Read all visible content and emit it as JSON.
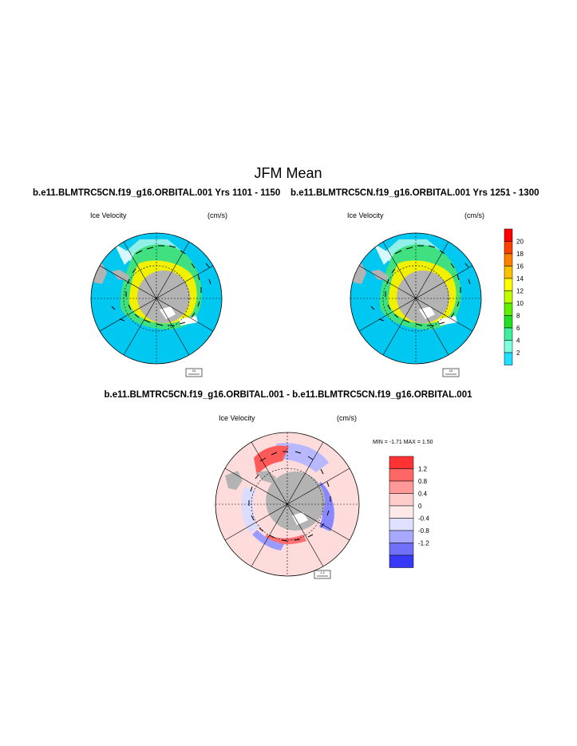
{
  "page": {
    "title": "JFM Mean",
    "case_left": "b.e11.BLMTRC5CN.f19_g16.ORBITAL.001  Yrs 1101 - 1150",
    "case_right": "b.e11.BLMTRC5CN.f19_g16.ORBITAL.001  Yrs 1251 - 1300",
    "diff_title": "b.e11.BLMTRC5CN.f19_g16.ORBITAL.001 - b.e11.BLMTRC5CN.f19_g16.ORBITAL.001"
  },
  "colors": {
    "ocean": "#00c8f0",
    "land": "#b3b3b3",
    "diff_background": "#ffdcdc"
  },
  "chart_data": [
    {
      "type": "polar-vector-map",
      "name": "left-panel",
      "left_label": "Ice Velocity",
      "right_label": "(cm/s)",
      "ref_vector_label": "10"
    },
    {
      "type": "polar-vector-map",
      "name": "right-panel",
      "left_label": "Ice Velocity",
      "right_label": "(cm/s)",
      "ref_vector_label": "10"
    },
    {
      "type": "colorbar",
      "name": "speed-colorbar",
      "tick_labels": [
        "20",
        "18",
        "16",
        "14",
        "12",
        "10",
        "8",
        "6",
        "4",
        "2"
      ],
      "colors": [
        "#ff0000",
        "#ff4000",
        "#ff8000",
        "#ffc000",
        "#ffff00",
        "#c0ff00",
        "#60f000",
        "#20e020",
        "#40f0a0",
        "#80ffe0",
        "#20e0ff"
      ]
    },
    {
      "type": "polar-vector-map",
      "name": "difference-panel",
      "left_label": "Ice Velocity",
      "right_label": "(cm/s)",
      "ref_vector_label": "1.2",
      "minmax_label": "MIN =  -1.71 MAX =   1.50"
    },
    {
      "type": "colorbar",
      "name": "difference-colorbar",
      "tick_labels": [
        "1.2",
        "0.8",
        "0.4",
        "0",
        "-0.4",
        "-0.8",
        "-1.2"
      ],
      "colors": [
        "#ff3333",
        "#ff6666",
        "#ff9999",
        "#ffcccc",
        "#ffe8e8",
        "#e0e0ff",
        "#a8a8ff",
        "#7070f8",
        "#3838f8"
      ]
    }
  ]
}
